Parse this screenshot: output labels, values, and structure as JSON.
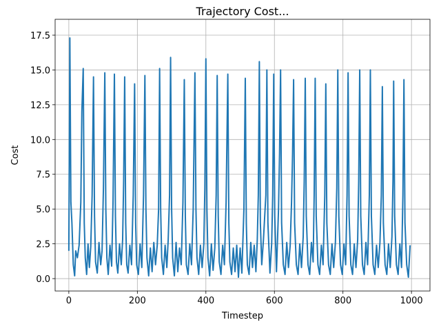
{
  "chart_data": {
    "type": "line",
    "title": "Trajectory Cost...",
    "x_label": "Timestep",
    "y_label": "Cost",
    "color": "#1f77b4",
    "grid": true,
    "xlim": [
      -40,
      1054
    ],
    "ylim": [
      -0.89,
      18.64
    ],
    "xticks": [
      0,
      200,
      400,
      600,
      800,
      1000
    ],
    "yticks": [
      {
        "value": 0,
        "label": "0.0"
      },
      2.5,
      {
        "value": 5,
        "label": "5.0"
      },
      7.5,
      {
        "value": 10,
        "label": "10.0"
      },
      12.5,
      {
        "value": 15,
        "label": "15.0"
      },
      17.5
    ],
    "x": [
      0,
      3,
      6,
      9,
      13,
      17,
      20,
      25,
      30,
      35,
      38,
      42,
      45,
      48,
      52,
      56,
      60,
      64,
      68,
      72,
      75,
      78,
      83,
      88,
      93,
      97,
      101,
      105,
      108,
      111,
      115,
      120,
      125,
      129,
      133,
      136,
      139,
      143,
      148,
      153,
      157,
      160,
      163,
      166,
      169,
      173,
      178,
      183,
      188,
      192,
      195,
      198,
      203,
      208,
      213,
      218,
      222,
      225,
      228,
      233,
      238,
      243,
      248,
      253,
      258,
      262,
      265,
      268,
      271,
      276,
      281,
      286,
      290,
      294,
      297,
      300,
      303,
      308,
      313,
      318,
      323,
      328,
      333,
      337,
      340,
      343,
      348,
      353,
      358,
      363,
      368,
      371,
      374,
      379,
      384,
      389,
      394,
      397,
      400,
      403,
      406,
      411,
      416,
      421,
      426,
      430,
      433,
      436,
      439,
      444,
      449,
      454,
      459,
      464,
      467,
      470,
      475,
      480,
      485,
      490,
      495,
      500,
      505,
      511,
      515,
      518,
      521,
      526,
      531,
      536,
      541,
      546,
      550,
      553,
      556,
      559,
      563,
      568,
      575,
      578,
      581,
      587,
      592,
      595,
      598,
      601,
      606,
      612,
      615,
      618,
      621,
      626,
      631,
      636,
      641,
      646,
      650,
      653,
      656,
      659,
      664,
      669,
      674,
      679,
      684,
      687,
      690,
      693,
      698,
      703,
      708,
      713,
      716,
      719,
      722,
      727,
      732,
      737,
      742,
      747,
      750,
      753,
      758,
      763,
      768,
      773,
      778,
      782,
      785,
      788,
      793,
      798,
      803,
      808,
      812,
      815,
      818,
      823,
      828,
      833,
      838,
      843,
      846,
      849,
      852,
      857,
      862,
      867,
      872,
      877,
      880,
      883,
      888,
      893,
      898,
      903,
      908,
      912,
      915,
      918,
      923,
      928,
      933,
      938,
      943,
      946,
      948,
      951,
      956,
      961,
      966,
      971,
      975,
      978,
      981,
      986,
      991,
      996
    ],
    "values": [
      2.0,
      17.3,
      5.5,
      4.0,
      1.0,
      0.2,
      2.0,
      1.5,
      2.4,
      5.5,
      12.0,
      15.1,
      4.0,
      1.5,
      0.3,
      2.5,
      0.8,
      2.3,
      6.0,
      14.5,
      4.5,
      1.2,
      0.4,
      2.6,
      1.0,
      2.0,
      6.5,
      14.8,
      5.0,
      1.5,
      0.3,
      2.4,
      0.9,
      5.5,
      14.7,
      4.5,
      1.2,
      0.4,
      2.5,
      1.0,
      2.8,
      7.0,
      14.5,
      4.0,
      1.0,
      0.4,
      2.4,
      1.0,
      6.0,
      14.0,
      4.0,
      1.0,
      0.3,
      2.5,
      0.8,
      6.0,
      14.6,
      5.0,
      1.5,
      0.2,
      2.2,
      0.5,
      2.6,
      1.0,
      2.4,
      5.0,
      15.1,
      5.0,
      1.5,
      0.3,
      2.4,
      0.8,
      2.8,
      6.0,
      15.9,
      5.0,
      1.5,
      0.2,
      2.6,
      0.5,
      2.2,
      1.0,
      5.5,
      14.3,
      4.5,
      1.0,
      0.3,
      2.5,
      1.0,
      5.0,
      14.8,
      5.0,
      1.5,
      0.3,
      2.4,
      0.8,
      2.5,
      6.5,
      15.8,
      5.0,
      1.5,
      0.2,
      2.5,
      0.6,
      2.2,
      6.0,
      14.6,
      4.5,
      1.2,
      0.3,
      2.4,
      1.0,
      5.5,
      14.7,
      4.0,
      1.2,
      0.3,
      2.2,
      0.5,
      2.4,
      0.1,
      2.2,
      0.4,
      5.0,
      14.4,
      4.0,
      1.0,
      0.3,
      2.6,
      0.8,
      2.4,
      0.5,
      2.8,
      6.0,
      15.6,
      4.0,
      1.0,
      2.8,
      6.0,
      15.0,
      4.0,
      0.4,
      2.5,
      6.0,
      14.7,
      4.5,
      0.5,
      5.0,
      9.0,
      15.0,
      4.0,
      1.0,
      0.3,
      2.6,
      0.8,
      2.4,
      5.5,
      9.0,
      14.3,
      4.0,
      1.0,
      0.3,
      2.5,
      0.8,
      3.0,
      7.0,
      14.4,
      4.5,
      1.0,
      0.3,
      2.6,
      1.2,
      6.0,
      14.4,
      4.5,
      1.0,
      0.3,
      2.4,
      1.0,
      6.0,
      14.0,
      4.0,
      1.0,
      0.3,
      2.5,
      0.8,
      2.6,
      6.5,
      15.0,
      4.5,
      1.0,
      0.3,
      2.5,
      1.0,
      6.0,
      14.8,
      4.5,
      1.0,
      0.3,
      2.5,
      0.8,
      2.8,
      7.0,
      15.0,
      4.5,
      1.0,
      0.3,
      2.6,
      1.0,
      6.0,
      15.0,
      4.5,
      1.0,
      0.3,
      2.4,
      0.8,
      2.6,
      6.0,
      13.8,
      4.0,
      1.0,
      0.3,
      2.5,
      0.8,
      3.0,
      7.0,
      14.2,
      4.5,
      1.0,
      0.3,
      2.5,
      0.8,
      6.0,
      14.3,
      4.0,
      1.0,
      0.1,
      2.4
    ]
  }
}
